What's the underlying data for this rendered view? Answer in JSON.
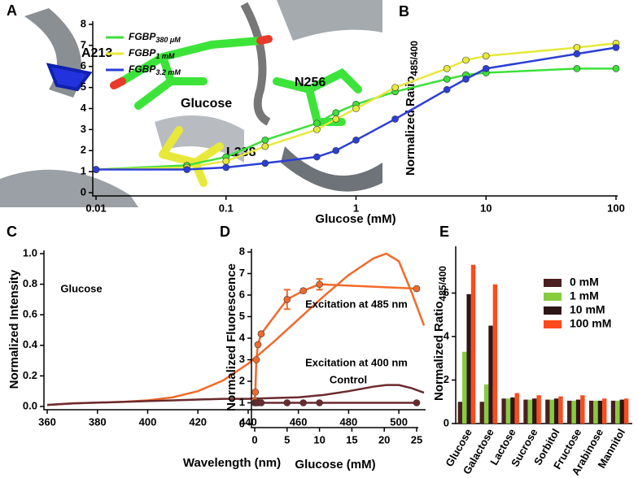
{
  "structure": {
    "panel": "A",
    "labels": [
      "A213",
      "Glucose",
      "N256",
      "L238"
    ]
  },
  "chart_data": [
    {
      "type": "line",
      "panel": "B",
      "xlabel": "Glucose (mM)",
      "ylabel": "Normalized Ratio",
      "ylabel_subscript": "485/400",
      "xscale": "log",
      "xlim": [
        0.01,
        100
      ],
      "xticks": [
        0.01,
        0.1,
        1,
        10,
        100
      ],
      "ylim": [
        0,
        8
      ],
      "yticks": [
        0,
        1,
        2,
        3,
        4,
        5,
        6,
        7,
        8
      ],
      "markers": true,
      "x": [
        0.01,
        0.05,
        0.1,
        0.2,
        0.5,
        0.7,
        1,
        2,
        5,
        7,
        10,
        50,
        100
      ],
      "series": [
        {
          "name": "FGBP",
          "subscript": "380 μM",
          "color": "#3ee03a",
          "values": [
            1.1,
            1.3,
            1.7,
            2.5,
            3.3,
            3.8,
            4.2,
            4.8,
            5.4,
            5.6,
            5.7,
            5.9,
            5.9
          ]
        },
        {
          "name": "FGBP",
          "subscript": "1 mM",
          "color": "#e8e83a",
          "values": [
            1.1,
            1.2,
            1.5,
            2.2,
            3.0,
            3.5,
            4.0,
            5.0,
            5.9,
            6.3,
            6.5,
            6.9,
            7.1
          ]
        },
        {
          "name": "FGBP",
          "subscript": "3.2 mM",
          "color": "#2b3fd6",
          "values": [
            1.1,
            1.1,
            1.2,
            1.4,
            1.7,
            2.0,
            2.5,
            3.5,
            4.9,
            5.4,
            5.9,
            6.6,
            6.9
          ]
        }
      ]
    },
    {
      "type": "line",
      "panel": "C",
      "xlabel": "Wavelength (nm)",
      "ylabel": "Normalized Intensity",
      "xlim": [
        360,
        510
      ],
      "xticks": [
        360,
        380,
        400,
        420,
        440,
        460,
        480,
        500
      ],
      "ylim": [
        0,
        1
      ],
      "yticks": [
        {
          "value": 0,
          "label": "0.0"
        },
        0.2,
        0.4,
        0.6,
        0.8,
        {
          "value": 1,
          "label": "1.0"
        }
      ],
      "markers": false,
      "x": [
        360,
        370,
        380,
        390,
        400,
        410,
        420,
        430,
        440,
        450,
        460,
        470,
        480,
        490,
        495,
        500,
        505,
        510
      ],
      "annotations": [
        "Glucose",
        "Control"
      ],
      "series": [
        {
          "name": "Glucose",
          "color": "#f26a2a",
          "values": [
            0.01,
            0.02,
            0.025,
            0.03,
            0.04,
            0.06,
            0.1,
            0.17,
            0.28,
            0.42,
            0.57,
            0.72,
            0.86,
            0.97,
            1.0,
            0.95,
            0.75,
            0.53
          ]
        },
        {
          "name": "Control",
          "color": "#6b2a2e",
          "values": [
            0.01,
            0.02,
            0.025,
            0.03,
            0.035,
            0.04,
            0.045,
            0.05,
            0.05,
            0.055,
            0.06,
            0.075,
            0.1,
            0.13,
            0.14,
            0.14,
            0.12,
            0.09
          ]
        }
      ]
    },
    {
      "type": "line",
      "panel": "D",
      "xlabel": "Glucose (mM)",
      "ylabel": "Normalized Fluorescence",
      "xlim": [
        0,
        25
      ],
      "xticks": [
        0,
        5,
        10,
        15,
        20,
        25
      ],
      "ylim": [
        0,
        8
      ],
      "yticks": [
        0,
        1,
        2,
        3,
        4,
        5,
        6,
        7,
        8
      ],
      "markers": true,
      "x": [
        0,
        0.1,
        0.25,
        0.5,
        1,
        5,
        7.5,
        10,
        25
      ],
      "annotations": [
        "Excitation at 485 nm",
        "Excitation at 400 nm"
      ],
      "series": [
        {
          "name": "Excitation at 485 nm",
          "color": "#f26a2a",
          "values": [
            1.1,
            1.5,
            3.0,
            3.7,
            4.2,
            5.8,
            6.2,
            6.5,
            6.3
          ],
          "errors": [
            null,
            null,
            null,
            null,
            null,
            0.45,
            null,
            0.25,
            null
          ]
        },
        {
          "name": "Excitation at 400 nm",
          "color": "#6b2a2e",
          "values": [
            1,
            1,
            1,
            1,
            1,
            1,
            1,
            1,
            1
          ],
          "errors": [
            null,
            null,
            null,
            null,
            null,
            null,
            null,
            null,
            null
          ]
        }
      ]
    },
    {
      "type": "bar",
      "panel": "E",
      "ylabel": "Normalized Ratio",
      "ylabel_subscript": "485/400",
      "ylim": [
        0,
        8
      ],
      "yticks": [
        0,
        2,
        4,
        6
      ],
      "categories": [
        "Glucose",
        "Galactose",
        "Lactose",
        "Sucrose",
        "Sorbitol",
        "Fructose",
        "Arabinose",
        "Mannitol"
      ],
      "series": [
        {
          "name": "0 mM",
          "color": "#4a1f1f",
          "values": [
            1.0,
            1.0,
            1.15,
            1.1,
            1.1,
            1.05,
            1.05,
            1.05
          ]
        },
        {
          "name": "1 mM",
          "color": "#86cc3e",
          "values": [
            3.3,
            1.8,
            1.15,
            1.1,
            1.1,
            1.05,
            1.05,
            1.05
          ]
        },
        {
          "name": "10 mM",
          "color": "#2e1616",
          "values": [
            5.95,
            4.5,
            1.2,
            1.15,
            1.15,
            1.1,
            1.05,
            1.1
          ]
        },
        {
          "name": "100 mM",
          "color": "#ff4a1c",
          "values": [
            7.3,
            6.4,
            1.4,
            1.3,
            1.25,
            1.3,
            1.15,
            1.15
          ]
        }
      ]
    }
  ]
}
